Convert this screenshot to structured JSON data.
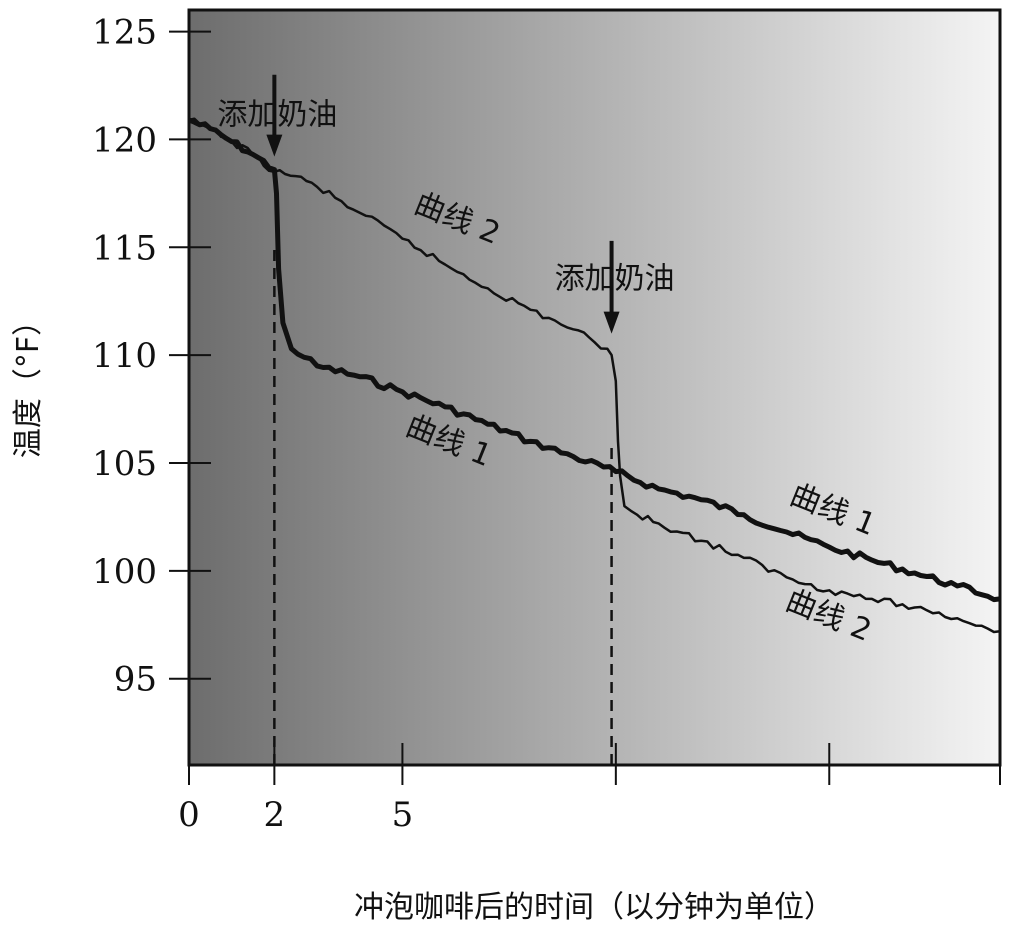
{
  "chart_data": {
    "type": "line",
    "xlabel": "冲泡咖啡后的时间（以分钟为单位）",
    "ylabel": "温度（°F）",
    "xlim": [
      0,
      19
    ],
    "ylim": [
      91,
      126
    ],
    "x_tick_values": [
      0,
      2,
      5,
      10,
      15,
      19
    ],
    "x_tick_labels": [
      "0",
      "2",
      "5",
      "",
      "",
      ""
    ],
    "y_ticks": [
      95,
      100,
      105,
      110,
      115,
      120,
      125
    ],
    "grid": false,
    "legend": "none",
    "colors": {
      "background_left": "#6d6d6d",
      "background_right": "#f4f4f4",
      "line": "#111111"
    },
    "series": [
      {
        "name": "曲线 1",
        "style": "thick",
        "x": [
          0,
          0.5,
          1,
          1.5,
          2,
          2.05,
          2.1,
          2.2,
          2.4,
          2.7,
          3,
          4,
          5,
          6,
          7,
          8,
          9,
          10,
          11,
          12,
          13,
          14,
          15,
          16,
          17,
          18,
          19
        ],
        "y": [
          120.9,
          120.5,
          119.9,
          119.3,
          118.6,
          117.5,
          114,
          111.5,
          110.3,
          109.9,
          109.5,
          109,
          108.3,
          107.6,
          106.8,
          106,
          105.3,
          104.6,
          103.8,
          103.3,
          102.6,
          101.8,
          101.1,
          100.5,
          99.9,
          99.3,
          98.7
        ],
        "labels": [
          {
            "text": "曲线 1",
            "x": 6,
            "y": 105.6
          },
          {
            "text": "曲线 1",
            "x": 15,
            "y": 102.4
          }
        ]
      },
      {
        "name": "曲线 2",
        "style": "thin",
        "x": [
          0,
          0.5,
          1,
          1.5,
          2,
          2.5,
          3,
          4,
          5,
          6,
          7,
          8,
          9,
          9.5,
          9.8,
          9.9,
          10,
          10.05,
          10.1,
          10.2,
          10.5,
          11,
          12,
          13,
          14,
          15,
          16,
          17,
          18,
          19
        ],
        "y": [
          120.9,
          120.5,
          119.9,
          119.3,
          118.5,
          118.3,
          117.8,
          116.6,
          115.4,
          114.2,
          113.1,
          112.1,
          111.2,
          110.6,
          110.3,
          110,
          108.8,
          106,
          104.4,
          103,
          102.6,
          102.2,
          101.4,
          100.6,
          99.7,
          99.1,
          98.7,
          98.3,
          97.8,
          97.2
        ],
        "labels": [
          {
            "text": "曲线 2",
            "x": 6.2,
            "y": 115.9
          },
          {
            "text": "曲线 2",
            "x": 14.9,
            "y": 97.5
          }
        ]
      }
    ],
    "annotations": [
      {
        "text": "添加奶油",
        "x": 2,
        "y": 120.7,
        "arrow_from": 123,
        "arrow_to": 119.2
      },
      {
        "text": "添加奶油",
        "x": 9.9,
        "y": 113.1,
        "arrow_from": 115.3,
        "arrow_to": 111
      }
    ],
    "vlines": [
      {
        "x": 2,
        "from": 91,
        "to": 115
      },
      {
        "x": 9.9,
        "from": 91,
        "to": 106
      }
    ]
  }
}
